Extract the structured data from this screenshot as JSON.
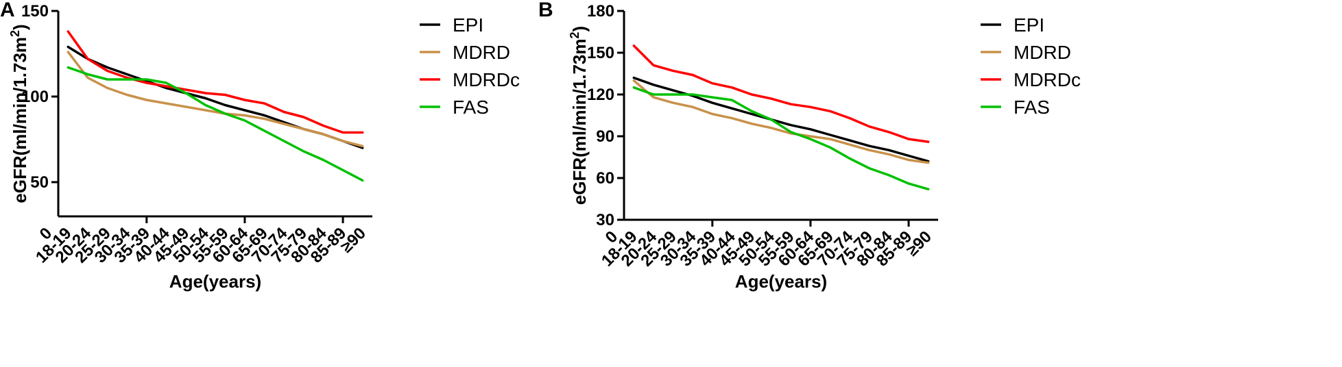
{
  "chart_data": [
    {
      "panel": "A",
      "type": "line",
      "xlabel": "Age(years)",
      "ylabel_main": "eGFR(ml/min/1.73m",
      "ylabel_sup": "2",
      "ylabel_end": ")",
      "x_origin_label": "0",
      "categories": [
        "18-19",
        "20-24",
        "25-29",
        "30-34",
        "35-39",
        "40-44",
        "45-49",
        "50-54",
        "55-59",
        "60-64",
        "65-69",
        "70-74",
        "75-79",
        "80-84",
        "85-89",
        "≥90"
      ],
      "ylim": [
        30,
        150
      ],
      "yticks": [
        50,
        100,
        150
      ],
      "series": [
        {
          "name": "EPI",
          "color": "#000000",
          "values": [
            129,
            122,
            117,
            113,
            109,
            105,
            102,
            99,
            95,
            92,
            89,
            85,
            81,
            78,
            74,
            70
          ]
        },
        {
          "name": "MDRD",
          "color": "#c8914a",
          "values": [
            126,
            111,
            105,
            101,
            98,
            96,
            94,
            92,
            90,
            89,
            87,
            84,
            81,
            78,
            74,
            71
          ]
        },
        {
          "name": "MDRDc",
          "color": "#ff0000",
          "values": [
            138,
            122,
            115,
            111,
            108,
            106,
            104,
            102,
            101,
            98,
            96,
            91,
            88,
            83,
            79,
            79
          ]
        },
        {
          "name": "FAS",
          "color": "#00c000",
          "values": [
            117,
            113,
            110,
            110,
            110,
            108,
            102,
            95,
            90,
            86,
            80,
            74,
            68,
            63,
            57,
            51
          ]
        }
      ]
    },
    {
      "panel": "B",
      "type": "line",
      "xlabel": "Age(years)",
      "ylabel_main": "eGFR(ml/min/1.73m",
      "ylabel_sup": "2",
      "ylabel_end": ")",
      "x_origin_label": "0",
      "categories": [
        "18-19",
        "20-24",
        "25-29",
        "30-34",
        "35-39",
        "40-44",
        "45-49",
        "50-54",
        "55-59",
        "60-64",
        "65-69",
        "70-74",
        "75-79",
        "80-84",
        "85-89",
        "≥90"
      ],
      "ylim": [
        30,
        180
      ],
      "yticks": [
        30,
        60,
        90,
        120,
        150,
        180
      ],
      "series": [
        {
          "name": "EPI",
          "color": "#000000",
          "values": [
            132,
            127,
            123,
            119,
            114,
            110,
            106,
            102,
            98,
            95,
            91,
            87,
            83,
            80,
            76,
            72
          ]
        },
        {
          "name": "MDRD",
          "color": "#c8914a",
          "values": [
            130,
            118,
            114,
            111,
            106,
            103,
            99,
            96,
            92,
            90,
            88,
            84,
            80,
            77,
            73,
            71
          ]
        },
        {
          "name": "MDRDc",
          "color": "#ff0000",
          "values": [
            155,
            141,
            137,
            134,
            128,
            125,
            120,
            117,
            113,
            111,
            108,
            103,
            97,
            93,
            88,
            86
          ]
        },
        {
          "name": "FAS",
          "color": "#00c000",
          "values": [
            125,
            120,
            120,
            120,
            118,
            116,
            108,
            102,
            93,
            88,
            82,
            74,
            67,
            62,
            56,
            52
          ]
        }
      ]
    }
  ]
}
